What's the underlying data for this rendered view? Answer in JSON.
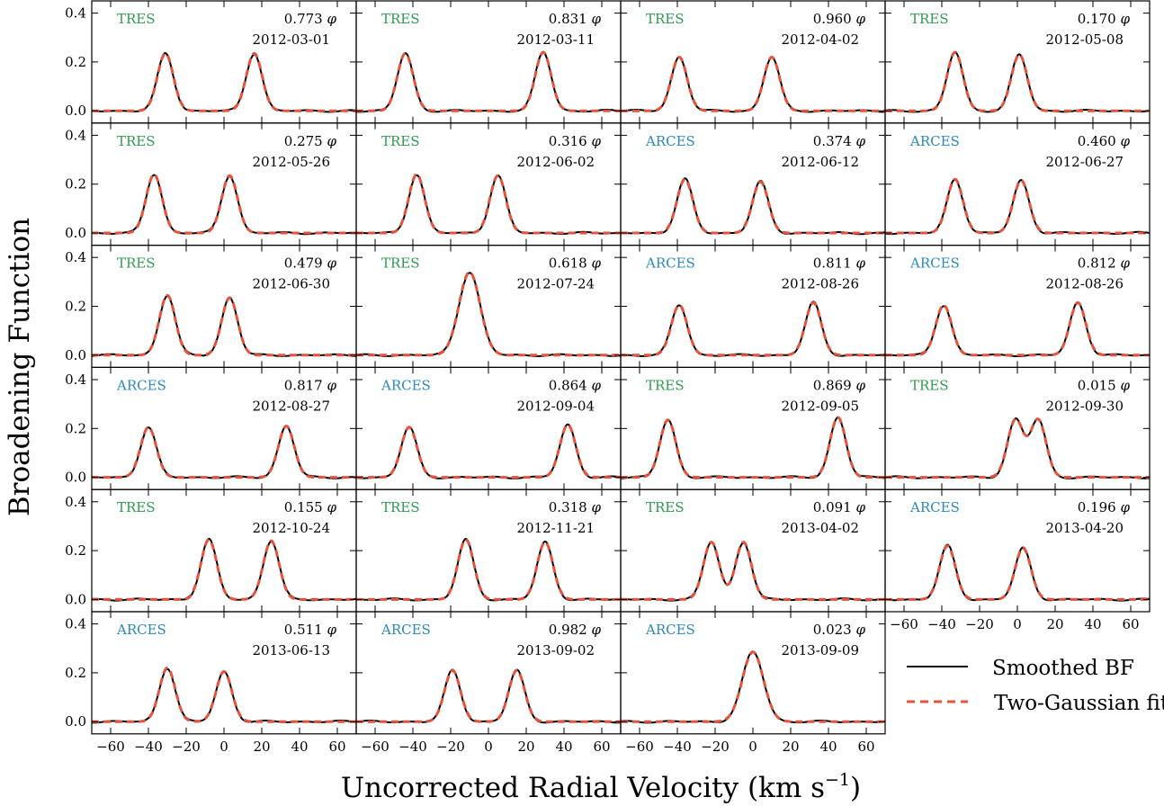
{
  "figure": {
    "ylabel": "Broadening Function",
    "xlabel": "Uncorrected Radial Velocity (km s",
    "xlabel_sup": "−1",
    "xlabel_close": ")"
  },
  "legend": {
    "entries": [
      {
        "label": "Smoothed BF",
        "color": "#000000",
        "style": "solid"
      },
      {
        "label": "Two-Gaussian fit",
        "color": "#e5533c",
        "style": "dashed"
      }
    ],
    "placement": "bottom-right"
  },
  "colors": {
    "TRES": "#2e9b4f",
    "ARCES": "#2a88bf",
    "bf_line": "#000000",
    "fit_line": "#e5533c"
  },
  "axes": {
    "xlim": [
      -70,
      70
    ],
    "ylim": [
      -0.05,
      0.45
    ],
    "xticks": [
      -60,
      -40,
      -20,
      0,
      20,
      40,
      60
    ],
    "xtick_labels": [
      "−60",
      "−40",
      "−20",
      "0",
      "20",
      "40",
      "60"
    ],
    "yticks": [
      0.0,
      0.2,
      0.4
    ],
    "ytick_labels": [
      "0.0",
      "0.2",
      "0.4"
    ]
  },
  "chart_data": {
    "type": "line",
    "grid": false,
    "layout": "6 rows × 4 columns of small multiples",
    "panels": [
      {
        "instrument": "TRES",
        "phase": "0.773",
        "date": "2012-03-01",
        "peaks": [
          {
            "mu": -31,
            "amp": 0.235
          },
          {
            "mu": 16,
            "amp": 0.235
          }
        ]
      },
      {
        "instrument": "TRES",
        "phase": "0.831",
        "date": "2012-03-11",
        "peaks": [
          {
            "mu": -44,
            "amp": 0.235
          },
          {
            "mu": 29,
            "amp": 0.24
          }
        ]
      },
      {
        "instrument": "TRES",
        "phase": "0.960",
        "date": "2012-04-02",
        "peaks": [
          {
            "mu": -39,
            "amp": 0.22
          },
          {
            "mu": 10,
            "amp": 0.22
          }
        ]
      },
      {
        "instrument": "TRES",
        "phase": "0.170",
        "date": "2012-05-08",
        "peaks": [
          {
            "mu": -33,
            "amp": 0.24
          },
          {
            "mu": 1,
            "amp": 0.23
          }
        ]
      },
      {
        "instrument": "TRES",
        "phase": "0.275",
        "date": "2012-05-26",
        "peaks": [
          {
            "mu": -37,
            "amp": 0.24
          },
          {
            "mu": 3,
            "amp": 0.235
          }
        ]
      },
      {
        "instrument": "TRES",
        "phase": "0.316",
        "date": "2012-06-02",
        "peaks": [
          {
            "mu": -38,
            "amp": 0.24
          },
          {
            "mu": 5,
            "amp": 0.235
          }
        ]
      },
      {
        "instrument": "ARCES",
        "phase": "0.374",
        "date": "2012-06-12",
        "peaks": [
          {
            "mu": -36,
            "amp": 0.22
          },
          {
            "mu": 4,
            "amp": 0.21
          }
        ]
      },
      {
        "instrument": "ARCES",
        "phase": "0.460",
        "date": "2012-06-27",
        "peaks": [
          {
            "mu": -33,
            "amp": 0.22
          },
          {
            "mu": 2,
            "amp": 0.215
          }
        ]
      },
      {
        "instrument": "TRES",
        "phase": "0.479",
        "date": "2012-06-30",
        "peaks": [
          {
            "mu": -30,
            "amp": 0.245
          },
          {
            "mu": 3,
            "amp": 0.235
          }
        ]
      },
      {
        "instrument": "TRES",
        "phase": "0.618",
        "date": "2012-07-24",
        "peaks": [
          {
            "mu": -10,
            "amp": 0.34
          }
        ]
      },
      {
        "instrument": "ARCES",
        "phase": "0.811",
        "date": "2012-08-26",
        "peaks": [
          {
            "mu": -39,
            "amp": 0.205
          },
          {
            "mu": 32,
            "amp": 0.215
          }
        ]
      },
      {
        "instrument": "ARCES",
        "phase": "0.812",
        "date": "2012-08-26",
        "peaks": [
          {
            "mu": -39,
            "amp": 0.205
          },
          {
            "mu": 32,
            "amp": 0.215
          }
        ]
      },
      {
        "instrument": "ARCES",
        "phase": "0.817",
        "date": "2012-08-27",
        "peaks": [
          {
            "mu": -40,
            "amp": 0.205
          },
          {
            "mu": 33,
            "amp": 0.21
          }
        ]
      },
      {
        "instrument": "ARCES",
        "phase": "0.864",
        "date": "2012-09-04",
        "peaks": [
          {
            "mu": -42,
            "amp": 0.205
          },
          {
            "mu": 42,
            "amp": 0.215
          }
        ]
      },
      {
        "instrument": "TRES",
        "phase": "0.869",
        "date": "2012-09-05",
        "peaks": [
          {
            "mu": -45,
            "amp": 0.235
          },
          {
            "mu": 45,
            "amp": 0.245
          }
        ]
      },
      {
        "instrument": "TRES",
        "phase": "0.015",
        "date": "2012-09-30",
        "peaks": [
          {
            "mu": -1,
            "amp": 0.235
          },
          {
            "mu": 11,
            "amp": 0.235
          }
        ]
      },
      {
        "instrument": "TRES",
        "phase": "0.155",
        "date": "2012-10-24",
        "peaks": [
          {
            "mu": -8,
            "amp": 0.245
          },
          {
            "mu": 25,
            "amp": 0.24
          }
        ]
      },
      {
        "instrument": "TRES",
        "phase": "0.318",
        "date": "2012-11-21",
        "peaks": [
          {
            "mu": -12,
            "amp": 0.245
          },
          {
            "mu": 30,
            "amp": 0.235
          }
        ]
      },
      {
        "instrument": "TRES",
        "phase": "0.091",
        "date": "2013-04-02",
        "peaks": [
          {
            "mu": -22,
            "amp": 0.235
          },
          {
            "mu": -5,
            "amp": 0.235
          }
        ]
      },
      {
        "instrument": "ARCES",
        "phase": "0.196",
        "date": "2013-04-20",
        "peaks": [
          {
            "mu": -37,
            "amp": 0.22
          },
          {
            "mu": 3,
            "amp": 0.21
          }
        ]
      },
      {
        "instrument": "ARCES",
        "phase": "0.511",
        "date": "2013-06-13",
        "peaks": [
          {
            "mu": -30,
            "amp": 0.22
          },
          {
            "mu": 0,
            "amp": 0.205
          }
        ]
      },
      {
        "instrument": "ARCES",
        "phase": "0.982",
        "date": "2013-09-02",
        "peaks": [
          {
            "mu": -19,
            "amp": 0.21
          },
          {
            "mu": 15,
            "amp": 0.21
          }
        ]
      },
      {
        "instrument": "ARCES",
        "phase": "0.023",
        "date": "2013-09-09",
        "peaks": [
          {
            "mu": 0,
            "amp": 0.285
          }
        ]
      }
    ]
  }
}
